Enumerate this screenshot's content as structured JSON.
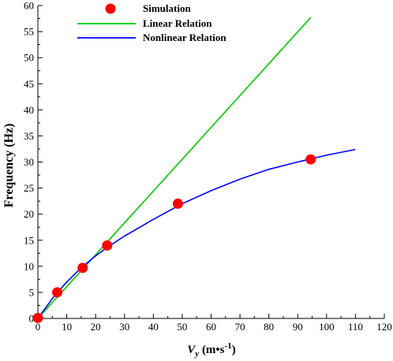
{
  "chart_data": {
    "type": "line",
    "xlabel": {
      "main": "V",
      "sub": "y",
      "unit": " (m•s",
      "sup": "-1",
      "close": ")"
    },
    "ylabel": "Frequency (Hz)",
    "xlim": [
      0,
      120
    ],
    "ylim": [
      0,
      60
    ],
    "x_ticks": [
      0,
      10,
      20,
      30,
      40,
      50,
      60,
      70,
      80,
      90,
      100,
      110,
      120
    ],
    "y_ticks": [
      0,
      5,
      10,
      15,
      20,
      25,
      30,
      35,
      40,
      45,
      50,
      55,
      60
    ],
    "grid": false,
    "legend_position": "top-left",
    "series": [
      {
        "name": "Simulation",
        "kind": "scatter",
        "color": "#ff0000",
        "points": [
          {
            "x": 0,
            "y": 0.1
          },
          {
            "x": 6.7,
            "y": 5.0
          },
          {
            "x": 15.5,
            "y": 9.7
          },
          {
            "x": 24.0,
            "y": 14.0
          },
          {
            "x": 48.5,
            "y": 22.0
          },
          {
            "x": 94.5,
            "y": 30.5
          }
        ]
      },
      {
        "name": "Linear Relation",
        "kind": "line",
        "color": "#00cc00",
        "points": [
          {
            "x": 0,
            "y": 0
          },
          {
            "x": 94.5,
            "y": 57.7
          }
        ]
      },
      {
        "name": "Nonlinear Relation",
        "kind": "line",
        "color": "#0000ff",
        "points": [
          {
            "x": 0,
            "y": 0
          },
          {
            "x": 5,
            "y": 3.8
          },
          {
            "x": 10,
            "y": 7.0
          },
          {
            "x": 15,
            "y": 9.7
          },
          {
            "x": 20,
            "y": 12.0
          },
          {
            "x": 25,
            "y": 14.0
          },
          {
            "x": 30,
            "y": 15.8
          },
          {
            "x": 40,
            "y": 19.0
          },
          {
            "x": 50,
            "y": 22.0
          },
          {
            "x": 60,
            "y": 24.5
          },
          {
            "x": 70,
            "y": 26.7
          },
          {
            "x": 80,
            "y": 28.6
          },
          {
            "x": 90,
            "y": 30.0
          },
          {
            "x": 100,
            "y": 31.3
          },
          {
            "x": 110,
            "y": 32.4
          }
        ]
      }
    ]
  }
}
